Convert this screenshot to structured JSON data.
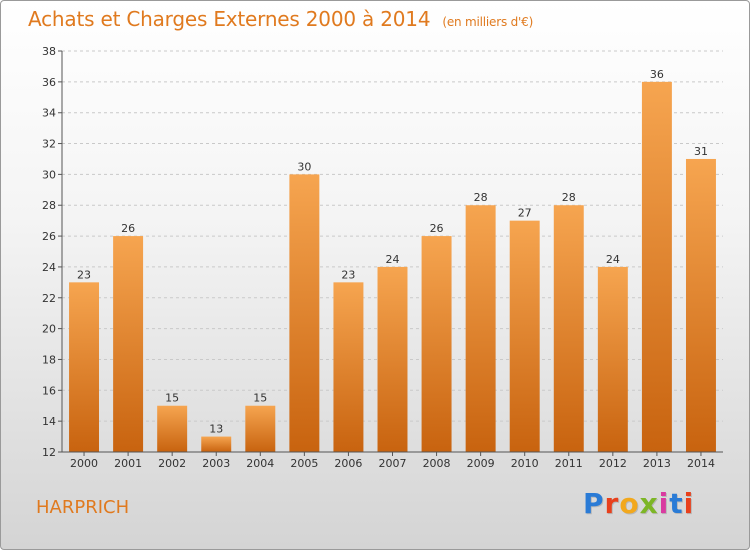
{
  "header": {
    "title": "Achats et Charges Externes 2000 à 2014",
    "unit": "(en milliers d'€)"
  },
  "footer": {
    "town": "HARPRICH",
    "logo": "Proxiti",
    "logo_colors": [
      "#2a7bd6",
      "#e8401c",
      "#f2a81d",
      "#7db626",
      "#d93aa0",
      "#2a7bd6",
      "#e8401c"
    ]
  },
  "colors": {
    "bar_light": "#f6a550",
    "bar_dark": "#c8630f",
    "grid": "#c9c9c9",
    "axis": "#555555",
    "title": "#e07a1f"
  },
  "chart_data": {
    "type": "bar",
    "categories": [
      "2000",
      "2001",
      "2002",
      "2003",
      "2004",
      "2005",
      "2006",
      "2007",
      "2008",
      "2009",
      "2010",
      "2011",
      "2012",
      "2013",
      "2014"
    ],
    "values": [
      23,
      26,
      15,
      13,
      15,
      30,
      23,
      24,
      26,
      28,
      27,
      28,
      24,
      36,
      31
    ],
    "ylim": [
      12,
      38
    ],
    "yticks": [
      12,
      14,
      16,
      18,
      20,
      22,
      24,
      26,
      28,
      30,
      32,
      34,
      36,
      38
    ],
    "grid": true,
    "data_labels": true
  }
}
